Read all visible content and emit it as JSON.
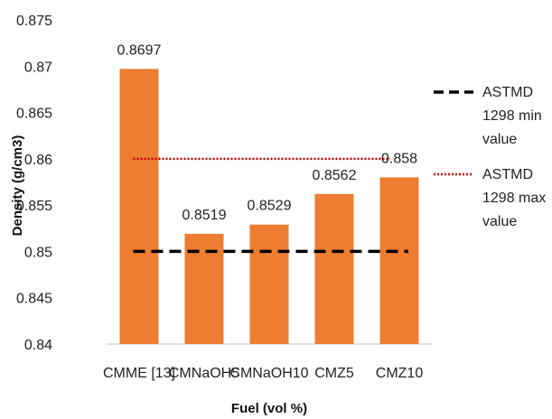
{
  "chart_data": {
    "type": "bar",
    "categories": [
      "CMME [13]",
      "CMNaOH5",
      "CMNaOH10",
      "CMZ5",
      "CMZ10"
    ],
    "values": [
      0.8697,
      0.8519,
      0.8529,
      0.8562,
      0.858
    ],
    "data_labels": [
      "0.8697",
      "0.8519",
      "0.8529",
      "0.8562",
      "0.858"
    ],
    "bar_color": "#ED7D31",
    "xlabel": "Fuel (vol %)",
    "ylabel": "Density (g/cm3)",
    "ylim": [
      0.84,
      0.875
    ],
    "yticks": [
      "0.84",
      "0.845",
      "0.85",
      "0.855",
      "0.86",
      "0.865",
      "0.87",
      "0.875"
    ],
    "grid": false,
    "legend_position": "right",
    "reference_lines": [
      {
        "name_lines": [
          "ASTMD",
          "1298 min",
          "value"
        ],
        "value": 0.85,
        "style": "dashed",
        "color": "#000000"
      },
      {
        "name_lines": [
          "ASTMD",
          "1298 max",
          "value"
        ],
        "value": 0.86,
        "style": "dotted",
        "color": "#C00000"
      }
    ]
  }
}
